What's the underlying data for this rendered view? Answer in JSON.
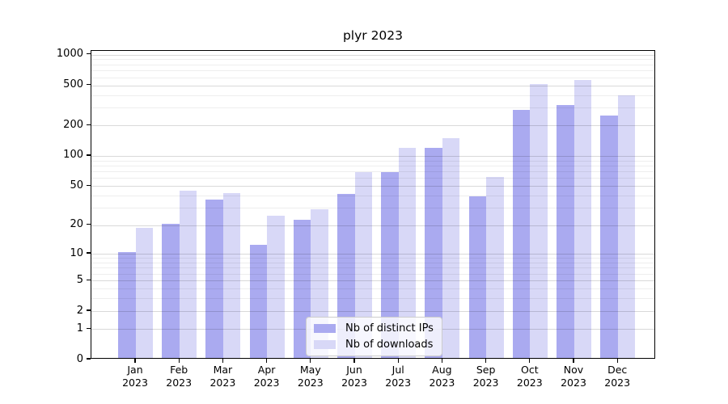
{
  "chart_data": {
    "type": "bar",
    "title": "plyr 2023",
    "y_scale": "log1p",
    "grid": true,
    "legend_position": "bottom-center",
    "categories": [
      "Jan 2023",
      "Feb 2023",
      "Mar 2023",
      "Apr 2023",
      "May 2023",
      "Jun 2023",
      "Jul 2023",
      "Aug 2023",
      "Sep 2023",
      "Oct 2023",
      "Nov 2023",
      "Dec 2023"
    ],
    "series": [
      {
        "name": "Nb of distinct IPs",
        "color": "#aaaaf0",
        "values": [
          10,
          20,
          35,
          12,
          22,
          40,
          66,
          115,
          38,
          277,
          307,
          240
        ]
      },
      {
        "name": "Nb of downloads",
        "color": "#d8d8f7",
        "values": [
          18,
          43,
          41,
          24,
          28,
          66,
          115,
          145,
          59,
          500,
          540,
          380
        ]
      }
    ],
    "yticks": [
      0,
      1,
      2,
      5,
      10,
      20,
      50,
      100,
      200,
      500,
      1000
    ],
    "y_minor_gridlines": [
      3,
      4,
      6,
      7,
      8,
      9,
      30,
      40,
      60,
      70,
      80,
      90,
      300,
      400,
      600,
      700,
      800,
      900
    ],
    "ylim": [
      0,
      1090
    ],
    "xlabel": "",
    "ylabel": ""
  },
  "colors": {
    "major_grid": "#d9d9d9",
    "minor_grid": "#f0f0f0",
    "axis": "#000000",
    "legend_border": "#cccccc"
  }
}
